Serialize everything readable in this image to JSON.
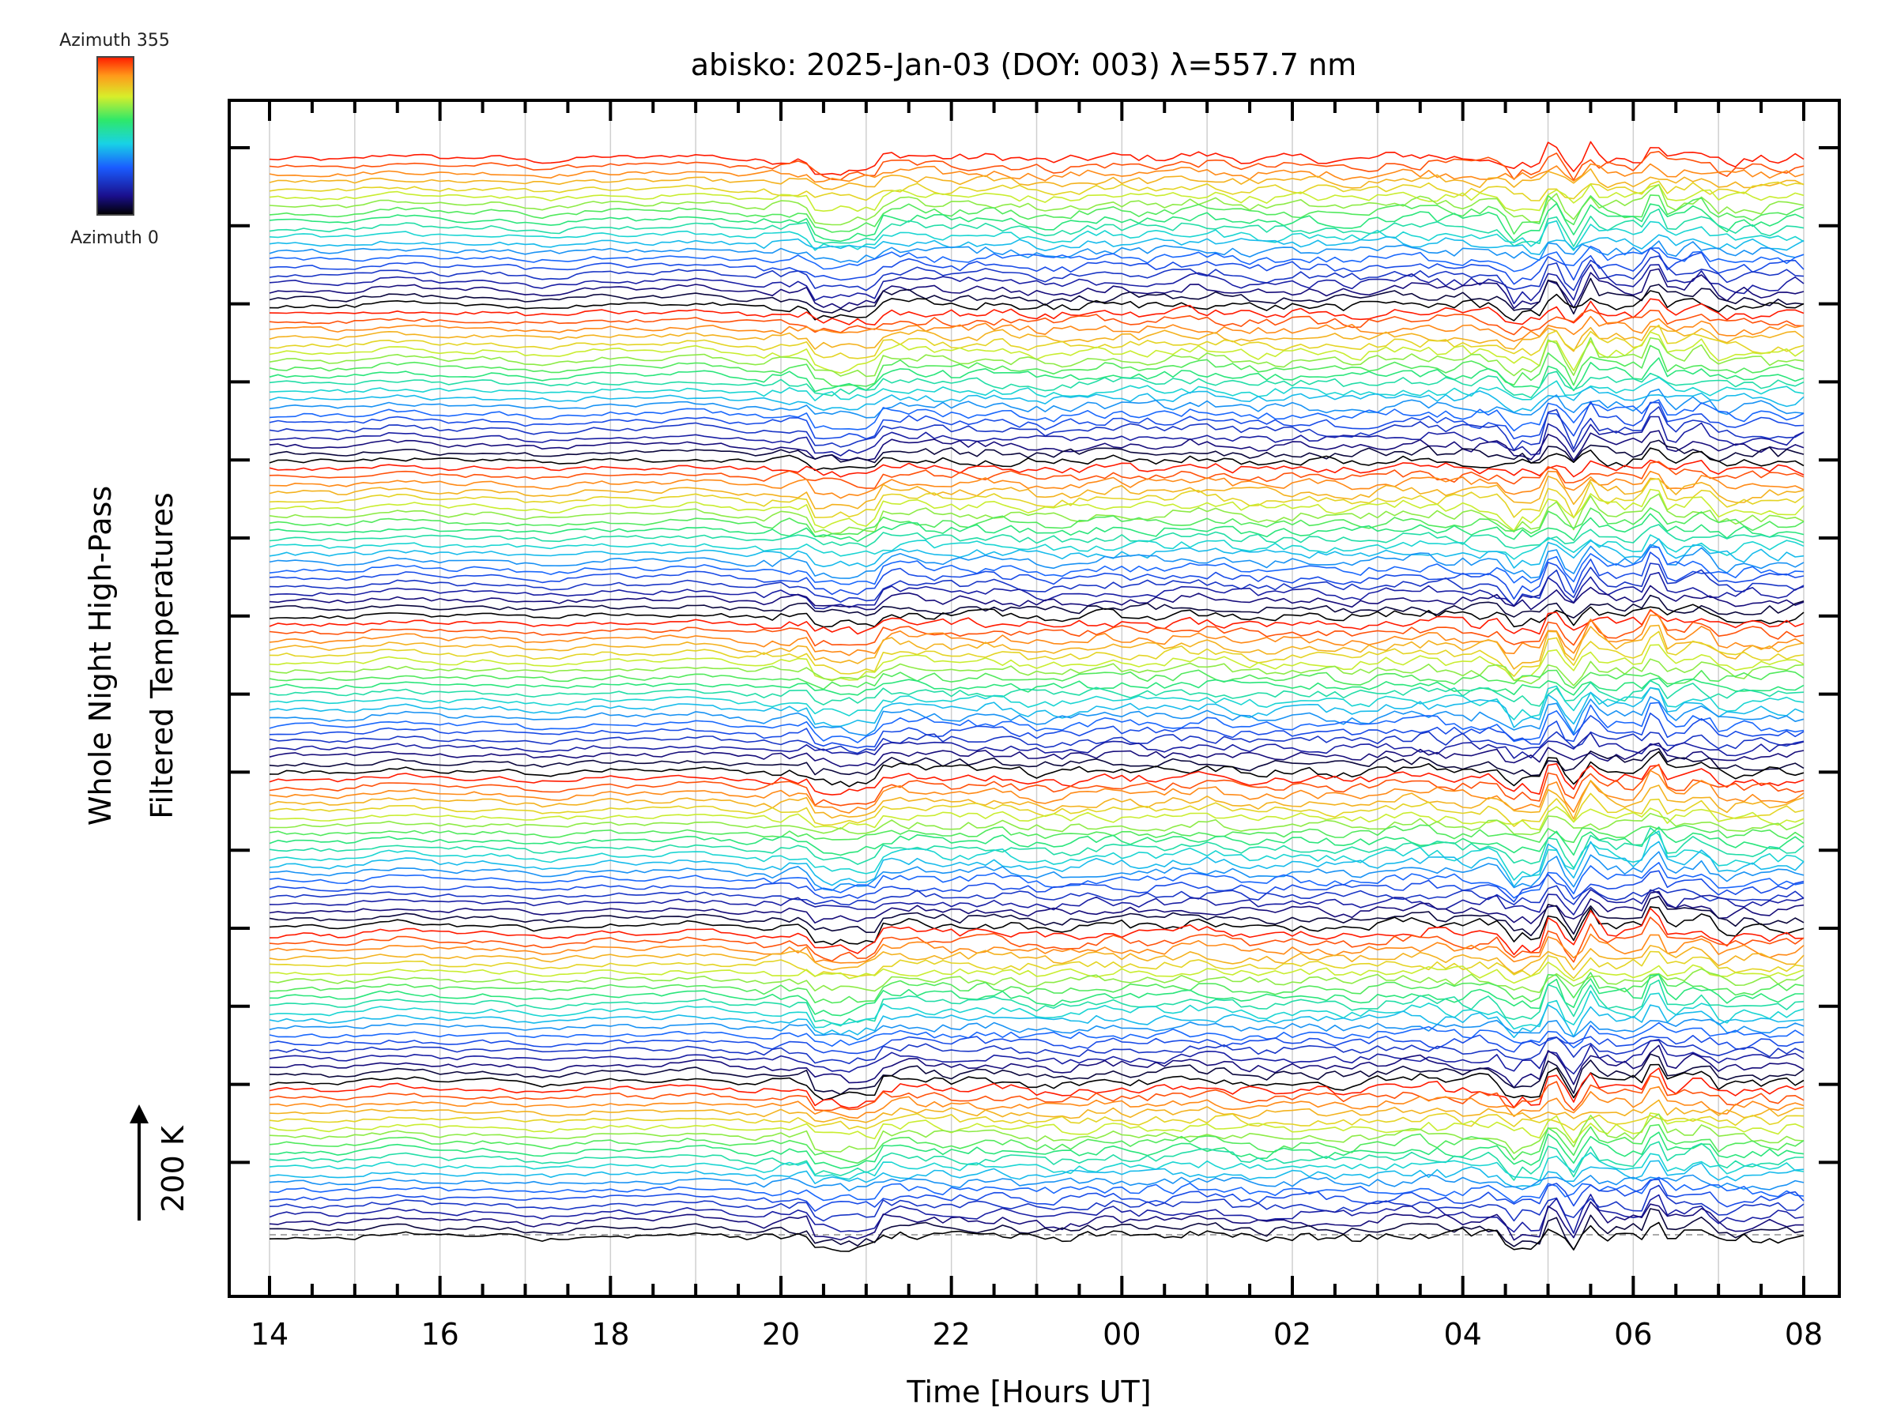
{
  "chart_data": {
    "type": "line",
    "title": "abisko: 2025-Jan-03 (DOY: 003) λ=557.7 nm",
    "xlabel": "Time [Hours UT]",
    "ylabel_line1": "Whole Night High-Pass",
    "ylabel_line2": "Filtered Temperatures",
    "scale_label": "200 K",
    "x_ticks": [
      "14",
      "16",
      "18",
      "20",
      "22",
      "00",
      "02",
      "04",
      "06",
      "08"
    ],
    "x_range_hours_ut": [
      14,
      32
    ],
    "colorbar": {
      "top_label": "Azimuth 355",
      "bottom_label": "Azimuth 0"
    },
    "zenith_groups": 7,
    "azimuths_per_group": 20,
    "azimuth_range": [
      0,
      355
    ],
    "grid": true,
    "colors": {
      "background": "#ffffff",
      "axis": "#000000",
      "gridline": "#cfcfcf"
    }
  }
}
